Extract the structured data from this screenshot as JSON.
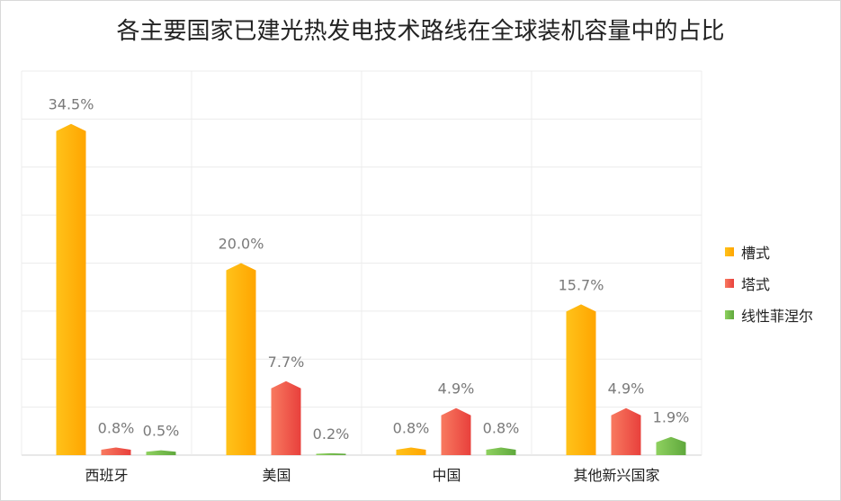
{
  "chart_data": {
    "type": "bar",
    "title": "各主要国家已建光热发电技术路线在全球装机容量中的占比",
    "categories": [
      "西班牙",
      "美国",
      "中国",
      "其他新兴国家"
    ],
    "series": [
      {
        "name": "槽式",
        "values": [
          34.5,
          20.0,
          0.8,
          15.7
        ],
        "labels": [
          "34.5%",
          "20.0%",
          "0.8%",
          "15.7%"
        ],
        "color": "#ffa500",
        "color_light": "#ffc21a"
      },
      {
        "name": "塔式",
        "values": [
          0.8,
          7.7,
          4.9,
          4.9
        ],
        "labels": [
          "0.8%",
          "7.7%",
          "4.9%",
          "4.9%"
        ],
        "color": "#e8403c",
        "color_light": "#f87a60"
      },
      {
        "name": "线性菲涅尔",
        "values": [
          0.5,
          0.2,
          0.8,
          1.9
        ],
        "labels": [
          "0.5%",
          "0.2%",
          "0.8%",
          "1.9%"
        ],
        "color": "#5fa83c",
        "color_light": "#8fd160"
      }
    ],
    "ylim": [
      0,
      40
    ],
    "grid": true,
    "legend_position": "right"
  }
}
